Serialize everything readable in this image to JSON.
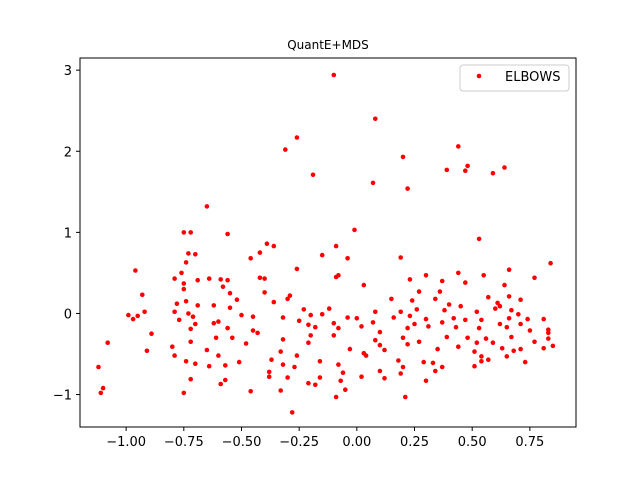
{
  "chart_data": {
    "type": "scatter",
    "title": "QuantE+MDS",
    "xlabel": "",
    "ylabel": "",
    "xlim": [
      -1.2,
      0.95
    ],
    "ylim": [
      -1.4,
      3.15
    ],
    "xticks": [
      -1.0,
      -0.75,
      -0.5,
      -0.25,
      0.0,
      0.25,
      0.5,
      0.75
    ],
    "xtick_labels": [
      "−1.00",
      "−0.75",
      "−0.50",
      "−0.25",
      "0.00",
      "0.25",
      "0.50",
      "0.75"
    ],
    "yticks": [
      -1,
      0,
      1,
      2,
      3
    ],
    "ytick_labels": [
      "−1",
      "0",
      "1",
      "2",
      "3"
    ],
    "grid": false,
    "legend_position": "top-right",
    "series": [
      {
        "name": "ELBOWS",
        "color": "#ff0000",
        "points": [
          [
            -0.1,
            2.94
          ],
          [
            0.08,
            2.4
          ],
          [
            -0.26,
            2.17
          ],
          [
            0.44,
            2.06
          ],
          [
            -0.31,
            2.02
          ],
          [
            0.2,
            1.93
          ],
          [
            0.48,
            1.82
          ],
          [
            0.64,
            1.8
          ],
          [
            0.39,
            1.77
          ],
          [
            0.47,
            1.76
          ],
          [
            0.59,
            1.73
          ],
          [
            -0.19,
            1.71
          ],
          [
            0.07,
            1.61
          ],
          [
            0.22,
            1.54
          ],
          [
            -0.65,
            1.32
          ],
          [
            -0.01,
            1.03
          ],
          [
            -0.75,
            1.0
          ],
          [
            -0.72,
            1.0
          ],
          [
            -0.56,
            0.98
          ],
          [
            0.53,
            0.92
          ],
          [
            -0.39,
            0.86
          ],
          [
            -0.09,
            0.83
          ],
          [
            -0.36,
            0.83
          ],
          [
            -0.42,
            0.75
          ],
          [
            -0.73,
            0.74
          ],
          [
            -0.7,
            0.73
          ],
          [
            -0.15,
            0.72
          ],
          [
            -0.46,
            0.68
          ],
          [
            0.19,
            0.69
          ],
          [
            -0.74,
            0.63
          ],
          [
            -0.04,
            0.68
          ],
          [
            0.84,
            0.62
          ],
          [
            -0.26,
            0.55
          ],
          [
            0.66,
            0.54
          ],
          [
            -0.96,
            0.53
          ],
          [
            -0.76,
            0.5
          ],
          [
            0.44,
            0.5
          ],
          [
            -0.08,
            0.47
          ],
          [
            -0.09,
            0.45
          ],
          [
            0.3,
            0.47
          ],
          [
            0.55,
            0.47
          ],
          [
            -0.79,
            0.43
          ],
          [
            -0.64,
            0.43
          ],
          [
            -0.59,
            0.42
          ],
          [
            -0.42,
            0.44
          ],
          [
            -0.4,
            0.43
          ],
          [
            -0.69,
            0.41
          ],
          [
            -0.56,
            0.41
          ],
          [
            0.23,
            0.42
          ],
          [
            0.77,
            0.44
          ],
          [
            0.37,
            0.4
          ],
          [
            0.47,
            0.38
          ],
          [
            -0.75,
            0.37
          ],
          [
            -0.58,
            0.33
          ],
          [
            0.03,
            0.35
          ],
          [
            0.64,
            0.35
          ],
          [
            -0.75,
            0.3
          ],
          [
            -0.4,
            0.26
          ],
          [
            0.27,
            0.27
          ],
          [
            -0.93,
            0.23
          ],
          [
            -0.55,
            0.25
          ],
          [
            -0.29,
            0.22
          ],
          [
            0.36,
            0.27
          ],
          [
            -0.3,
            0.18
          ],
          [
            0.66,
            0.21
          ],
          [
            0.71,
            0.17
          ],
          [
            0.15,
            0.18
          ],
          [
            0.57,
            0.2
          ],
          [
            -0.74,
            0.15
          ],
          [
            -0.52,
            0.17
          ],
          [
            -0.36,
            0.14
          ],
          [
            0.34,
            0.18
          ],
          [
            -0.78,
            0.12
          ],
          [
            -0.69,
            0.1
          ],
          [
            -0.62,
            0.1
          ],
          [
            0.24,
            0.16
          ],
          [
            0.4,
            0.11
          ],
          [
            0.61,
            0.13
          ],
          [
            -0.55,
            0.07
          ],
          [
            0.45,
            0.09
          ],
          [
            -0.23,
            0.05
          ],
          [
            -0.12,
            0.06
          ],
          [
            0.26,
            0.05
          ],
          [
            0.62,
            0.09
          ],
          [
            0.19,
            0.02
          ],
          [
            0.38,
            0.04
          ],
          [
            0.52,
            0.02
          ],
          [
            0.6,
            0.06
          ],
          [
            -0.92,
            0.02
          ],
          [
            -0.79,
            0.02
          ],
          [
            0.08,
            0.02
          ],
          [
            0.67,
            0.04
          ],
          [
            -0.73,
            0.0
          ],
          [
            -0.99,
            -0.02
          ],
          [
            -0.95,
            -0.03
          ],
          [
            -0.5,
            -0.02
          ],
          [
            -0.2,
            -0.02
          ],
          [
            -0.15,
            -0.01
          ],
          [
            0.23,
            -0.03
          ],
          [
            0.7,
            -0.01
          ],
          [
            0.81,
            -0.07
          ],
          [
            -0.97,
            -0.07
          ],
          [
            -0.71,
            -0.04
          ],
          [
            -0.45,
            -0.04
          ],
          [
            -0.32,
            -0.05
          ],
          [
            -0.04,
            -0.05
          ],
          [
            0.16,
            -0.05
          ],
          [
            0.42,
            -0.06
          ],
          [
            0.47,
            -0.08
          ],
          [
            0.54,
            -0.08
          ],
          [
            -0.77,
            -0.08
          ],
          [
            -0.6,
            -0.1
          ],
          [
            -0.25,
            -0.09
          ],
          [
            0.0,
            -0.06
          ],
          [
            0.3,
            -0.07
          ],
          [
            0.66,
            -0.06
          ],
          [
            0.74,
            -0.07
          ],
          [
            -0.7,
            -0.13
          ],
          [
            -0.62,
            -0.12
          ],
          [
            -0.21,
            -0.14
          ],
          [
            -0.1,
            -0.12
          ],
          [
            0.07,
            -0.11
          ],
          [
            0.25,
            -0.13
          ],
          [
            0.37,
            -0.11
          ],
          [
            0.62,
            -0.13
          ],
          [
            0.71,
            -0.13
          ],
          [
            0.83,
            -0.2
          ],
          [
            -0.89,
            -0.25
          ],
          [
            -0.72,
            -0.19
          ],
          [
            -0.56,
            -0.18
          ],
          [
            -0.45,
            -0.21
          ],
          [
            -0.43,
            -0.24
          ],
          [
            -0.18,
            -0.17
          ],
          [
            -0.08,
            -0.18
          ],
          [
            0.02,
            -0.16
          ],
          [
            0.22,
            -0.18
          ],
          [
            0.31,
            -0.16
          ],
          [
            0.43,
            -0.17
          ],
          [
            0.53,
            -0.18
          ],
          [
            0.65,
            -0.17
          ],
          [
            0.75,
            -0.21
          ],
          [
            0.83,
            -0.24
          ],
          [
            -0.61,
            -0.3
          ],
          [
            -0.32,
            -0.32
          ],
          [
            -0.2,
            -0.27
          ],
          [
            -0.1,
            -0.27
          ],
          [
            0.1,
            -0.23
          ],
          [
            0.2,
            -0.3
          ],
          [
            0.39,
            -0.29
          ],
          [
            0.48,
            -0.3
          ],
          [
            0.56,
            -0.31
          ],
          [
            0.67,
            -0.29
          ],
          [
            0.83,
            -0.31
          ],
          [
            -1.08,
            -0.36
          ],
          [
            -0.72,
            -0.35
          ],
          [
            -0.54,
            -0.3
          ],
          [
            -0.21,
            -0.36
          ],
          [
            0.08,
            -0.33
          ],
          [
            0.27,
            -0.35
          ],
          [
            0.52,
            -0.36
          ],
          [
            0.59,
            -0.36
          ],
          [
            0.77,
            -0.35
          ],
          [
            0.85,
            -0.4
          ],
          [
            -0.8,
            -0.41
          ],
          [
            -0.48,
            -0.37
          ],
          [
            0.1,
            -0.39
          ],
          [
            0.22,
            -0.38
          ],
          [
            0.44,
            -0.41
          ],
          [
            0.63,
            -0.43
          ],
          [
            0.81,
            -0.43
          ],
          [
            -0.91,
            -0.46
          ],
          [
            -0.65,
            -0.45
          ],
          [
            -0.33,
            -0.47
          ],
          [
            -0.03,
            -0.44
          ],
          [
            0.03,
            -0.49
          ],
          [
            0.12,
            -0.45
          ],
          [
            0.35,
            -0.44
          ],
          [
            0.51,
            -0.47
          ],
          [
            0.68,
            -0.46
          ],
          [
            0.71,
            -0.44
          ],
          [
            -0.79,
            -0.52
          ],
          [
            -0.6,
            -0.52
          ],
          [
            -0.26,
            -0.52
          ],
          [
            0.04,
            -0.52
          ],
          [
            0.54,
            -0.53
          ],
          [
            0.65,
            -0.53
          ],
          [
            0.57,
            -0.57
          ],
          [
            -0.74,
            -0.59
          ],
          [
            -0.37,
            -0.57
          ],
          [
            -0.16,
            -0.59
          ],
          [
            0.18,
            -0.58
          ],
          [
            0.29,
            -0.6
          ],
          [
            0.33,
            -0.61
          ],
          [
            0.54,
            -0.59
          ],
          [
            0.73,
            -0.6
          ],
          [
            -1.12,
            -0.66
          ],
          [
            -0.64,
            -0.65
          ],
          [
            -0.57,
            -0.64
          ],
          [
            -0.7,
            -0.62
          ],
          [
            -0.51,
            -0.6
          ],
          [
            -0.32,
            -0.63
          ],
          [
            -0.27,
            -0.66
          ],
          [
            -0.08,
            -0.63
          ],
          [
            0.2,
            -0.66
          ],
          [
            0.37,
            -0.66
          ],
          [
            0.51,
            -0.65
          ],
          [
            -0.38,
            -0.72
          ],
          [
            -0.06,
            -0.73
          ],
          [
            0.1,
            -0.71
          ],
          [
            0.19,
            -0.74
          ],
          [
            0.34,
            -0.71
          ],
          [
            -0.72,
            -0.81
          ],
          [
            -0.38,
            -0.78
          ],
          [
            -0.3,
            -0.79
          ],
          [
            -0.16,
            -0.79
          ],
          [
            0.02,
            -0.78
          ],
          [
            -0.57,
            -0.82
          ],
          [
            -0.59,
            -0.87
          ],
          [
            -0.21,
            -0.86
          ],
          [
            -0.18,
            -0.88
          ],
          [
            -0.07,
            -0.83
          ],
          [
            0.12,
            -0.8
          ],
          [
            0.3,
            -0.83
          ],
          [
            -1.1,
            -0.92
          ],
          [
            -1.11,
            -0.98
          ],
          [
            -0.75,
            -0.98
          ],
          [
            -0.46,
            -0.96
          ],
          [
            -0.33,
            -0.95
          ],
          [
            -0.05,
            -0.94
          ],
          [
            -0.09,
            -1.03
          ],
          [
            0.21,
            -1.03
          ],
          [
            -0.28,
            -1.22
          ]
        ]
      }
    ]
  }
}
